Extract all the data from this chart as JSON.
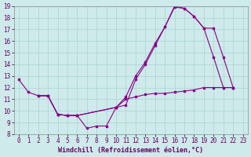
{
  "xlabel": "Windchill (Refroidissement éolien,°C)",
  "background_color": "#ceeaea",
  "line_color": "#880088",
  "xlim": [
    -0.5,
    23.5
  ],
  "ylim": [
    8,
    19
  ],
  "xticks": [
    0,
    1,
    2,
    3,
    4,
    5,
    6,
    7,
    8,
    9,
    10,
    11,
    12,
    13,
    14,
    15,
    16,
    17,
    18,
    19,
    20,
    21,
    22,
    23
  ],
  "yticks": [
    8,
    9,
    10,
    11,
    12,
    13,
    14,
    15,
    16,
    17,
    18,
    19
  ],
  "line1_x": [
    0,
    1,
    2,
    3,
    4,
    5,
    6,
    7,
    8,
    9,
    10,
    11,
    12,
    13,
    14,
    15,
    16,
    17,
    18,
    19,
    20,
    21,
    22
  ],
  "line1_y": [
    12.7,
    11.6,
    11.3,
    11.3,
    9.7,
    9.6,
    9.6,
    8.5,
    8.7,
    8.7,
    10.3,
    10.5,
    12.7,
    14.0,
    15.6,
    17.2,
    18.9,
    18.8,
    18.1,
    17.1,
    14.6,
    12.0,
    12.0
  ],
  "line2_x": [
    2,
    3,
    4,
    5,
    6,
    10,
    11,
    12,
    13,
    14,
    15,
    16,
    17,
    18,
    19,
    20,
    21,
    22
  ],
  "line2_y": [
    11.3,
    11.3,
    9.7,
    9.6,
    9.6,
    10.3,
    11.0,
    11.2,
    11.4,
    11.5,
    11.5,
    11.6,
    11.7,
    11.8,
    12.0,
    12.0,
    12.0,
    12.0
  ],
  "line3_x": [
    2,
    3,
    4,
    5,
    6,
    10,
    11,
    12,
    13,
    14,
    15,
    16,
    17,
    18,
    19,
    20,
    21,
    22
  ],
  "line3_y": [
    11.3,
    11.3,
    9.7,
    9.6,
    9.6,
    10.3,
    11.2,
    13.0,
    14.2,
    15.8,
    17.2,
    19.0,
    18.8,
    18.1,
    17.1,
    17.1,
    14.6,
    12.0
  ],
  "xlabel_color": "#660066",
  "xlabel_fontsize": 6,
  "tick_fontsize": 5.5,
  "grid_color": "#aad4d4",
  "marker_size": 2.0,
  "linewidth": 0.8
}
